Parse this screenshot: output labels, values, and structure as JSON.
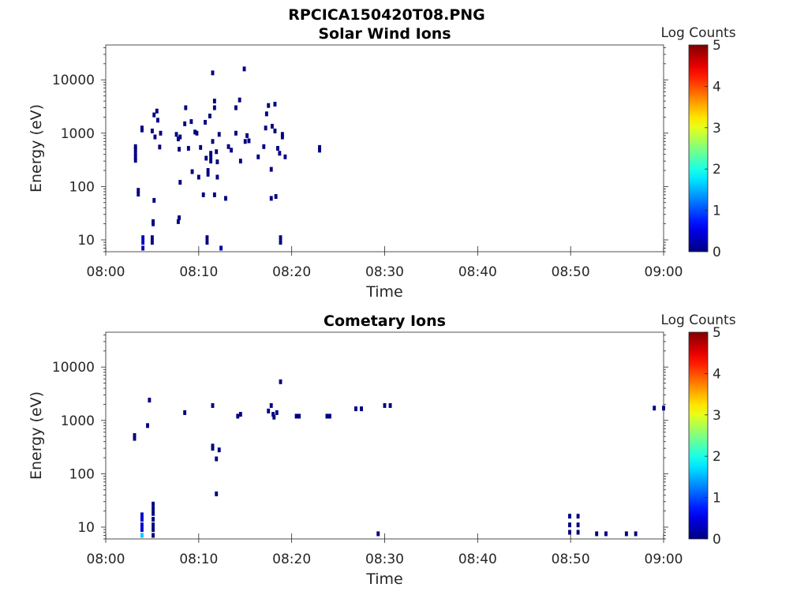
{
  "figure": {
    "title": "RPCICA150420T08.PNG"
  },
  "chart_data": [
    {
      "type": "heatmap",
      "title": "Solar Wind Ions",
      "xlabel": "Time",
      "ylabel": "Energy (eV)",
      "x_ticks": [
        "08:00",
        "08:10",
        "08:20",
        "08:30",
        "08:40",
        "08:50",
        "09:00"
      ],
      "x_range_minutes": [
        0,
        60
      ],
      "y_scale": "log",
      "y_ticks": [
        10,
        100,
        1000,
        10000
      ],
      "ylim": [
        6,
        45000
      ],
      "colorbar": {
        "label": "Log Counts",
        "ticks": [
          0,
          1,
          2,
          3,
          4,
          5
        ],
        "range": [
          0,
          5
        ],
        "colormap": "jet"
      },
      "points": [
        {
          "t": 3.2,
          "e": 500,
          "v": 0
        },
        {
          "t": 3.2,
          "e": 420,
          "v": 0
        },
        {
          "t": 3.2,
          "e": 360,
          "v": 0
        },
        {
          "t": 3.2,
          "e": 310,
          "v": 0
        },
        {
          "t": 3.2,
          "e": 560,
          "v": 0
        },
        {
          "t": 3.5,
          "e": 85,
          "v": 0
        },
        {
          "t": 3.5,
          "e": 72,
          "v": 0
        },
        {
          "t": 3.9,
          "e": 1250,
          "v": 0
        },
        {
          "t": 3.9,
          "e": 1150,
          "v": 0
        },
        {
          "t": 4.0,
          "e": 11,
          "v": 0.3
        },
        {
          "t": 4.0,
          "e": 9,
          "v": 0.3
        },
        {
          "t": 4.0,
          "e": 7,
          "v": 0.3
        },
        {
          "t": 5.0,
          "e": 11,
          "v": 0
        },
        {
          "t": 5.0,
          "e": 9,
          "v": 0
        },
        {
          "t": 5.1,
          "e": 22,
          "v": 0
        },
        {
          "t": 5.1,
          "e": 20,
          "v": 0
        },
        {
          "t": 5.2,
          "e": 55,
          "v": 0
        },
        {
          "t": 5.0,
          "e": 1100,
          "v": 0
        },
        {
          "t": 5.2,
          "e": 2200,
          "v": 0
        },
        {
          "t": 5.5,
          "e": 2600,
          "v": 0
        },
        {
          "t": 5.6,
          "e": 1750,
          "v": 0
        },
        {
          "t": 5.8,
          "e": 550,
          "v": 0
        },
        {
          "t": 5.3,
          "e": 850,
          "v": 0
        },
        {
          "t": 5.9,
          "e": 1000,
          "v": 0
        },
        {
          "t": 7.6,
          "e": 950,
          "v": 0
        },
        {
          "t": 7.8,
          "e": 780,
          "v": 0
        },
        {
          "t": 7.9,
          "e": 500,
          "v": 0
        },
        {
          "t": 8.0,
          "e": 850,
          "v": 0
        },
        {
          "t": 7.8,
          "e": 22,
          "v": 0
        },
        {
          "t": 7.9,
          "e": 26,
          "v": 0
        },
        {
          "t": 8.0,
          "e": 120,
          "v": 0
        },
        {
          "t": 8.5,
          "e": 1500,
          "v": 0
        },
        {
          "t": 8.6,
          "e": 3000,
          "v": 0
        },
        {
          "t": 8.9,
          "e": 520,
          "v": 0
        },
        {
          "t": 9.2,
          "e": 1650,
          "v": 0
        },
        {
          "t": 9.3,
          "e": 190,
          "v": 0
        },
        {
          "t": 9.6,
          "e": 1050,
          "v": 0
        },
        {
          "t": 9.8,
          "e": 1000,
          "v": 0
        },
        {
          "t": 10.0,
          "e": 150,
          "v": 0
        },
        {
          "t": 10.2,
          "e": 540,
          "v": 0
        },
        {
          "t": 10.5,
          "e": 70,
          "v": 0
        },
        {
          "t": 10.7,
          "e": 1600,
          "v": 0
        },
        {
          "t": 10.8,
          "e": 340,
          "v": 0
        },
        {
          "t": 10.9,
          "e": 11,
          "v": 0
        },
        {
          "t": 10.9,
          "e": 9,
          "v": 0
        },
        {
          "t": 11.0,
          "e": 200,
          "v": 0
        },
        {
          "t": 11.0,
          "e": 170,
          "v": 0
        },
        {
          "t": 11.2,
          "e": 2100,
          "v": 0
        },
        {
          "t": 11.3,
          "e": 420,
          "v": 0
        },
        {
          "t": 11.3,
          "e": 360,
          "v": 0
        },
        {
          "t": 11.3,
          "e": 300,
          "v": 0
        },
        {
          "t": 11.5,
          "e": 13500,
          "v": 0
        },
        {
          "t": 11.5,
          "e": 700,
          "v": 0
        },
        {
          "t": 11.7,
          "e": 4000,
          "v": 0
        },
        {
          "t": 11.7,
          "e": 3000,
          "v": 0
        },
        {
          "t": 11.7,
          "e": 70,
          "v": 0
        },
        {
          "t": 11.9,
          "e": 450,
          "v": 0
        },
        {
          "t": 12.0,
          "e": 150,
          "v": 0
        },
        {
          "t": 12.0,
          "e": 290,
          "v": 0
        },
        {
          "t": 12.2,
          "e": 950,
          "v": 0
        },
        {
          "t": 12.4,
          "e": 7,
          "v": 0.2
        },
        {
          "t": 12.9,
          "e": 60,
          "v": 0
        },
        {
          "t": 13.2,
          "e": 560,
          "v": 0
        },
        {
          "t": 13.5,
          "e": 480,
          "v": 0
        },
        {
          "t": 14.0,
          "e": 3000,
          "v": 0
        },
        {
          "t": 14.0,
          "e": 1000,
          "v": 0
        },
        {
          "t": 14.4,
          "e": 4200,
          "v": 0
        },
        {
          "t": 14.5,
          "e": 300,
          "v": 0
        },
        {
          "t": 14.9,
          "e": 16000,
          "v": 0
        },
        {
          "t": 15.0,
          "e": 700,
          "v": 0
        },
        {
          "t": 15.2,
          "e": 900,
          "v": 0
        },
        {
          "t": 15.4,
          "e": 720,
          "v": 0
        },
        {
          "t": 16.4,
          "e": 360,
          "v": 0
        },
        {
          "t": 17.0,
          "e": 560,
          "v": 0
        },
        {
          "t": 17.2,
          "e": 1250,
          "v": 0
        },
        {
          "t": 17.3,
          "e": 2300,
          "v": 0
        },
        {
          "t": 17.5,
          "e": 3300,
          "v": 0
        },
        {
          "t": 17.8,
          "e": 210,
          "v": 0
        },
        {
          "t": 17.8,
          "e": 60,
          "v": 0
        },
        {
          "t": 17.9,
          "e": 1350,
          "v": 0
        },
        {
          "t": 18.2,
          "e": 3500,
          "v": 0
        },
        {
          "t": 18.2,
          "e": 1100,
          "v": 0
        },
        {
          "t": 18.3,
          "e": 65,
          "v": 0
        },
        {
          "t": 18.5,
          "e": 520,
          "v": 0
        },
        {
          "t": 18.7,
          "e": 420,
          "v": 0
        },
        {
          "t": 18.8,
          "e": 11,
          "v": 0
        },
        {
          "t": 18.8,
          "e": 9,
          "v": 0
        },
        {
          "t": 19.0,
          "e": 950,
          "v": 0
        },
        {
          "t": 19.0,
          "e": 850,
          "v": 0
        },
        {
          "t": 19.3,
          "e": 360,
          "v": 0
        },
        {
          "t": 23.0,
          "e": 540,
          "v": 0
        },
        {
          "t": 23.0,
          "e": 480,
          "v": 0
        }
      ]
    },
    {
      "type": "heatmap",
      "title": "Cometary Ions",
      "xlabel": "Time",
      "ylabel": "Energy (eV)",
      "x_ticks": [
        "08:00",
        "08:10",
        "08:20",
        "08:30",
        "08:40",
        "08:50",
        "09:00"
      ],
      "x_range_minutes": [
        0,
        60
      ],
      "y_scale": "log",
      "y_ticks": [
        10,
        100,
        1000,
        10000
      ],
      "ylim": [
        6,
        45000
      ],
      "colorbar": {
        "label": "Log Counts",
        "ticks": [
          0,
          1,
          2,
          3,
          4,
          5
        ],
        "range": [
          0,
          5
        ],
        "colormap": "jet"
      },
      "points": [
        {
          "t": 3.1,
          "e": 520,
          "v": 0
        },
        {
          "t": 3.1,
          "e": 460,
          "v": 0
        },
        {
          "t": 3.9,
          "e": 17,
          "v": 0.4
        },
        {
          "t": 3.9,
          "e": 14,
          "v": 0.4
        },
        {
          "t": 3.9,
          "e": 11,
          "v": 0.4
        },
        {
          "t": 3.9,
          "e": 9,
          "v": 0.4
        },
        {
          "t": 3.9,
          "e": 7,
          "v": 1.6
        },
        {
          "t": 4.5,
          "e": 800,
          "v": 0
        },
        {
          "t": 4.7,
          "e": 2400,
          "v": 0
        },
        {
          "t": 5.1,
          "e": 27,
          "v": 0
        },
        {
          "t": 5.1,
          "e": 22,
          "v": 0
        },
        {
          "t": 5.1,
          "e": 18,
          "v": 0
        },
        {
          "t": 5.1,
          "e": 14,
          "v": 0
        },
        {
          "t": 5.1,
          "e": 11,
          "v": 0
        },
        {
          "t": 5.1,
          "e": 9,
          "v": 0
        },
        {
          "t": 5.1,
          "e": 7,
          "v": 0
        },
        {
          "t": 8.5,
          "e": 1400,
          "v": 0
        },
        {
          "t": 11.5,
          "e": 1900,
          "v": 0
        },
        {
          "t": 11.5,
          "e": 330,
          "v": 0
        },
        {
          "t": 11.5,
          "e": 300,
          "v": 0
        },
        {
          "t": 11.9,
          "e": 190,
          "v": 0
        },
        {
          "t": 11.9,
          "e": 42,
          "v": 0
        },
        {
          "t": 12.2,
          "e": 280,
          "v": 0
        },
        {
          "t": 14.2,
          "e": 1200,
          "v": 0
        },
        {
          "t": 14.5,
          "e": 1300,
          "v": 0
        },
        {
          "t": 17.5,
          "e": 1500,
          "v": 0
        },
        {
          "t": 17.8,
          "e": 1900,
          "v": 0
        },
        {
          "t": 18.0,
          "e": 1300,
          "v": 0
        },
        {
          "t": 18.1,
          "e": 1150,
          "v": 0
        },
        {
          "t": 18.4,
          "e": 1400,
          "v": 0
        },
        {
          "t": 18.8,
          "e": 5300,
          "v": 0
        },
        {
          "t": 20.5,
          "e": 1200,
          "v": 0
        },
        {
          "t": 20.8,
          "e": 1200,
          "v": 0
        },
        {
          "t": 23.8,
          "e": 1200,
          "v": 0
        },
        {
          "t": 24.1,
          "e": 1200,
          "v": 0
        },
        {
          "t": 26.9,
          "e": 1650,
          "v": 0
        },
        {
          "t": 27.5,
          "e": 1650,
          "v": 0
        },
        {
          "t": 30.0,
          "e": 1900,
          "v": 0
        },
        {
          "t": 30.6,
          "e": 1900,
          "v": 0
        },
        {
          "t": 29.3,
          "e": 7.5,
          "v": 0
        },
        {
          "t": 49.9,
          "e": 16,
          "v": 0
        },
        {
          "t": 49.9,
          "e": 11,
          "v": 0
        },
        {
          "t": 49.9,
          "e": 8,
          "v": 0
        },
        {
          "t": 50.8,
          "e": 16,
          "v": 0
        },
        {
          "t": 50.8,
          "e": 11,
          "v": 0
        },
        {
          "t": 50.8,
          "e": 8,
          "v": 0
        },
        {
          "t": 52.8,
          "e": 7.5,
          "v": 0
        },
        {
          "t": 53.8,
          "e": 7.5,
          "v": 0
        },
        {
          "t": 56.0,
          "e": 7.5,
          "v": 0
        },
        {
          "t": 57.0,
          "e": 7.5,
          "v": 0
        },
        {
          "t": 59.0,
          "e": 1700,
          "v": 0
        },
        {
          "t": 60.0,
          "e": 1700,
          "v": 0
        }
      ]
    }
  ]
}
